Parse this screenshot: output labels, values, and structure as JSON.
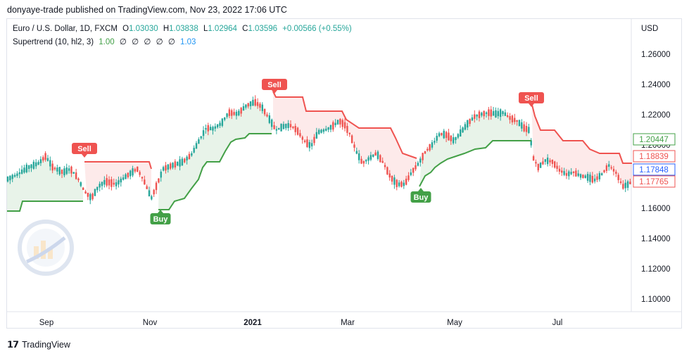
{
  "header": {
    "publish_text": "donyaye-trade published on TradingView.com, Nov 23, 2022 17:06 UTC"
  },
  "legend": {
    "symbol": "Euro / U.S. Dollar, 1D, FXCM",
    "o_label": "O",
    "o_value": "1.03030",
    "h_label": "H",
    "h_value": "1.03838",
    "l_label": "L",
    "l_value": "1.02964",
    "c_label": "C",
    "c_value": "1.03596",
    "change": "+0.00566 (+0.55%)",
    "indicator_name": "Supertrend (10, hl2, 3)",
    "ind_v1": "1.00",
    "ind_v2": "∅",
    "ind_v3": "∅",
    "ind_v4": "∅",
    "ind_v5": "∅",
    "ind_v6": "∅",
    "ind_v7": "1.03"
  },
  "currency_label": "USD",
  "price_axis": {
    "ticks": [
      "1.26000",
      "1.24000",
      "1.22000",
      "1.20000",
      "1.18000",
      "1.16000",
      "1.14000",
      "1.12000",
      "1.10000"
    ]
  },
  "time_axis": {
    "ticks": [
      "Sep",
      "Nov",
      "2021",
      "Mar",
      "May",
      "Jul"
    ]
  },
  "price_badges": [
    {
      "label": "1.20447",
      "color": "#43a047"
    },
    {
      "label": "1.18839",
      "color": "#ef5350"
    },
    {
      "label": "1.17848",
      "color": "#2962ff"
    },
    {
      "label": "1.17765",
      "color": "#ef5350"
    }
  ],
  "signals": [
    {
      "label": "Sell",
      "type": "sell"
    },
    {
      "label": "Buy",
      "type": "buy"
    },
    {
      "label": "Sell",
      "type": "sell"
    },
    {
      "label": "Buy",
      "type": "buy"
    },
    {
      "label": "Sell",
      "type": "sell"
    }
  ],
  "footer": {
    "brand": "TradingView"
  },
  "colors": {
    "up": "#26a69a",
    "down": "#ef5350",
    "st_up": "#43a047",
    "st_down": "#ef5350"
  }
}
